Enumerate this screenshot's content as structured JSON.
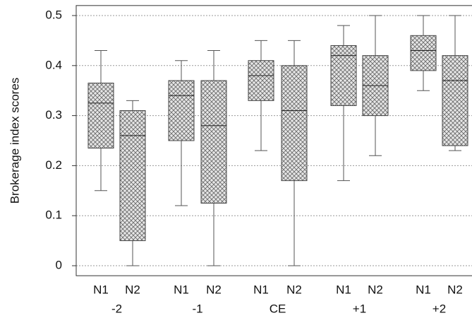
{
  "chart_data": {
    "type": "box",
    "y_label": "Brokerage index scores",
    "groups": [
      "-2",
      "-1",
      "CE",
      "+1",
      "+2"
    ],
    "categories": [
      "N1",
      "N2",
      "N1",
      "N2",
      "N1",
      "N2",
      "N1",
      "N2",
      "N1",
      "N2"
    ],
    "boxes": [
      {
        "min": 0.15,
        "q1": 0.235,
        "median": 0.325,
        "q3": 0.365,
        "max": 0.43
      },
      {
        "min": 0,
        "q1": 0.05,
        "median": 0.26,
        "q3": 0.31,
        "max": 0.33
      },
      {
        "min": 0.12,
        "q1": 0.25,
        "median": 0.34,
        "q3": 0.37,
        "max": 0.41
      },
      {
        "min": 0,
        "q1": 0.125,
        "median": 0.28,
        "q3": 0.37,
        "max": 0.43
      },
      {
        "min": 0.23,
        "q1": 0.33,
        "median": 0.38,
        "q3": 0.41,
        "max": 0.45
      },
      {
        "min": 0,
        "q1": 0.17,
        "median": 0.31,
        "q3": 0.4,
        "max": 0.45
      },
      {
        "min": 0.17,
        "q1": 0.32,
        "median": 0.42,
        "q3": 0.44,
        "max": 0.48
      },
      {
        "min": 0.22,
        "q1": 0.3,
        "median": 0.36,
        "q3": 0.42,
        "max": 0.5
      },
      {
        "min": 0.35,
        "q1": 0.39,
        "median": 0.43,
        "q3": 0.46,
        "max": 0.5
      },
      {
        "min": 0.23,
        "q1": 0.24,
        "median": 0.37,
        "q3": 0.42,
        "max": 0.5
      }
    ],
    "ylim": [
      -0.02,
      0.52
    ],
    "yticks": [
      0,
      0.1,
      0.2,
      0.3,
      0.4,
      0.5
    ],
    "grid": true
  }
}
